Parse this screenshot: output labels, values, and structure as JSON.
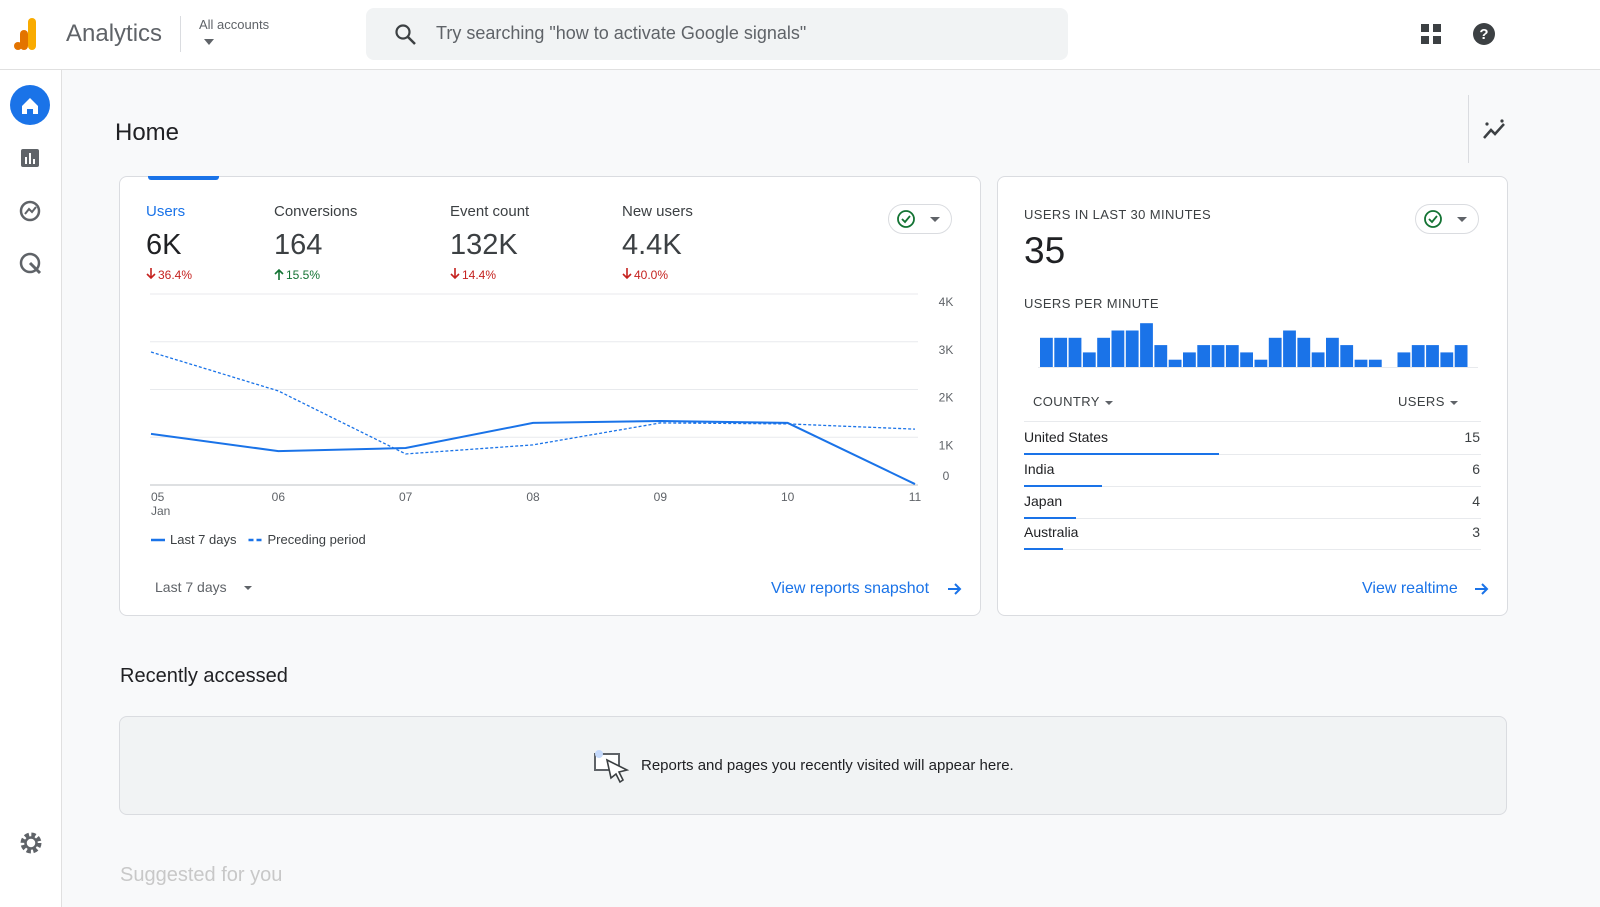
{
  "header": {
    "app_name": "Analytics",
    "account": "All accounts",
    "search_placeholder": "Try searching \"how to activate Google signals\""
  },
  "page_title": "Home",
  "overview": {
    "metrics": [
      {
        "label": "Users",
        "value": "6K",
        "change": "36.4%",
        "trend": "down"
      },
      {
        "label": "Conversions",
        "value": "164",
        "change": "15.5%",
        "trend": "up"
      },
      {
        "label": "Event count",
        "value": "132K",
        "change": "14.4%",
        "trend": "down"
      },
      {
        "label": "New users",
        "value": "4.4K",
        "change": "40.0%",
        "trend": "down"
      }
    ],
    "date_range": "Last 7 days",
    "link": "View reports snapshot"
  },
  "chart_data": [
    {
      "type": "line",
      "categories": [
        "05",
        "06",
        "07",
        "08",
        "09",
        "10",
        "11"
      ],
      "month": "Jan",
      "series": [
        {
          "name": "Last 7 days",
          "color": "#1a73e8",
          "dashed": false,
          "values": [
            1070,
            710,
            775,
            1300,
            1340,
            1300,
            20
          ]
        },
        {
          "name": "Preceding period",
          "color": "#1a73e8",
          "dashed": true,
          "values": [
            2785,
            1970,
            650,
            840,
            1300,
            1280,
            1170
          ]
        }
      ],
      "ylim": [
        0,
        4000
      ],
      "yticks": [
        0,
        {
          "value": 1000,
          "label": "1K"
        },
        {
          "value": 2000,
          "label": "2K"
        },
        {
          "value": 3000,
          "label": "3K"
        },
        {
          "value": 4000,
          "label": "4K"
        }
      ],
      "grid": true
    },
    {
      "type": "bar",
      "color": "#1a73e8",
      "values": [
        4,
        4,
        4,
        2,
        4,
        5,
        5,
        6,
        3,
        1,
        2,
        3,
        3,
        3,
        2,
        1,
        4,
        5,
        4,
        2,
        4,
        3,
        1,
        1,
        0,
        2,
        3,
        3,
        2,
        3
      ]
    }
  ],
  "realtime": {
    "title": "USERS IN LAST 30 MINUTES",
    "value": "35",
    "per_minute_label": "USERS PER MINUTE",
    "columns": [
      "COUNTRY",
      "USERS"
    ],
    "rows": [
      {
        "country": "United States",
        "users": 15
      },
      {
        "country": "India",
        "users": 6
      },
      {
        "country": "Japan",
        "users": 4
      },
      {
        "country": "Australia",
        "users": 3
      }
    ],
    "link": "View realtime"
  },
  "recent": {
    "title": "Recently accessed",
    "empty_message": "Reports and pages you recently visited will appear here."
  },
  "suggested": {
    "title": "Suggested for you"
  }
}
